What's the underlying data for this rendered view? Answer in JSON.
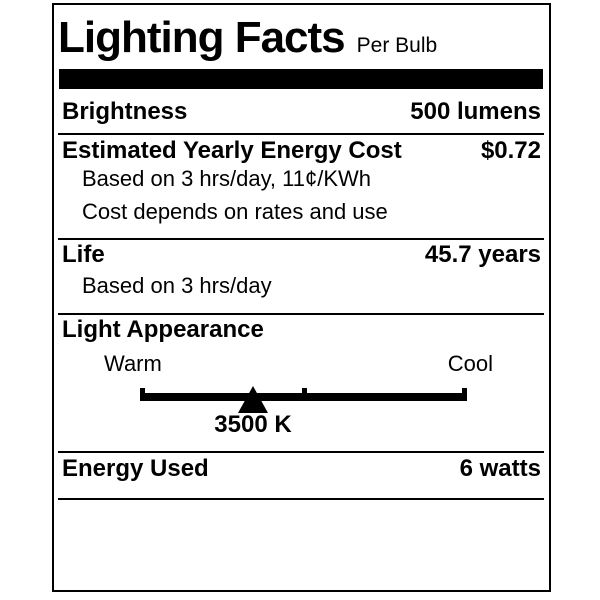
{
  "label": {
    "title": "Lighting Facts",
    "subtitle": "Per Bulb",
    "brightness": {
      "label": "Brightness",
      "value": "500 lumens"
    },
    "energy_cost": {
      "label": "Estimated Yearly Energy Cost",
      "value": "$0.72",
      "note1": "Based on 3 hrs/day, 11¢/KWh",
      "note2": "Cost depends on rates and use"
    },
    "life": {
      "label": "Life",
      "value": "45.7 years",
      "note": "Based on 3 hrs/day"
    },
    "light_appearance": {
      "label": "Light Appearance",
      "warm_label": "Warm",
      "cool_label": "Cool",
      "kelvin": "3500 K",
      "marker_percent": 34.6
    },
    "energy_used": {
      "label": "Energy Used",
      "value": "6 watts"
    },
    "colors": {
      "ink": "#000000",
      "paper": "#ffffff"
    }
  }
}
